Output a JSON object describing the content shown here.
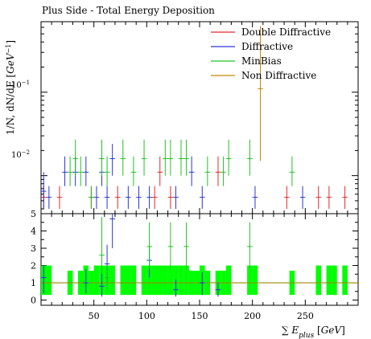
{
  "chart_data": [
    {
      "type": "scatter",
      "title": "Plus Side - Total Energy Deposition",
      "ylabel": "1/N, dN/dE [GeV^-1]",
      "yscale": "log",
      "ylim": [
        0.0035,
        0.7
      ],
      "xlim": [
        0,
        300
      ],
      "ytick_labels": [
        "10^-2",
        "10^-1"
      ],
      "legend": {
        "position": "top-right",
        "entries": [
          {
            "name": "Double Diffractive",
            "color": "#e8262a"
          },
          {
            "name": "Diffractive",
            "color": "#2a35d6"
          },
          {
            "name": "MinBias",
            "color": "#22c322"
          },
          {
            "name": "Non Diffractive",
            "color": "#c8870a"
          }
        ]
      },
      "bin_width": 5,
      "series": [
        {
          "name": "Double Diffractive",
          "color": "#e8262a",
          "points": [
            {
              "x": 2.5,
              "y": 0.0055,
              "lo": 0.004,
              "hi": 0.0075
            },
            {
              "x": 17.5,
              "y": 0.0055,
              "lo": 0.004,
              "hi": 0.0075
            },
            {
              "x": 47.5,
              "y": 0.0055,
              "lo": 0.004,
              "hi": 0.0075
            },
            {
              "x": 72.5,
              "y": 0.0055,
              "lo": 0.004,
              "hi": 0.0075
            },
            {
              "x": 107.5,
              "y": 0.0055,
              "lo": 0.004,
              "hi": 0.0075
            },
            {
              "x": 112.5,
              "y": 0.011,
              "lo": 0.0075,
              "hi": 0.017
            },
            {
              "x": 122.5,
              "y": 0.0055,
              "lo": 0.004,
              "hi": 0.0075
            },
            {
              "x": 167.5,
              "y": 0.011,
              "lo": 0.0075,
              "hi": 0.017
            },
            {
              "x": 232.5,
              "y": 0.0055,
              "lo": 0.004,
              "hi": 0.0075
            },
            {
              "x": 262.5,
              "y": 0.0055,
              "lo": 0.004,
              "hi": 0.0075
            },
            {
              "x": 272.5,
              "y": 0.0055,
              "lo": 0.004,
              "hi": 0.0075
            },
            {
              "x": 287.5,
              "y": 0.0055,
              "lo": 0.004,
              "hi": 0.0075
            }
          ]
        },
        {
          "name": "Diffractive",
          "color": "#2a35d6",
          "points": [
            {
              "x": 2.5,
              "y": 0.0065,
              "lo": 0.004,
              "hi": 0.011
            },
            {
              "x": 7.5,
              "y": 0.0055,
              "lo": 0.004,
              "hi": 0.0075
            },
            {
              "x": 22.5,
              "y": 0.011,
              "lo": 0.0075,
              "hi": 0.017
            },
            {
              "x": 32.5,
              "y": 0.011,
              "lo": 0.0075,
              "hi": 0.017
            },
            {
              "x": 42.5,
              "y": 0.011,
              "lo": 0.0075,
              "hi": 0.017
            },
            {
              "x": 52.5,
              "y": 0.0055,
              "lo": 0.004,
              "hi": 0.0075
            },
            {
              "x": 57.5,
              "y": 0.011,
              "lo": 0.0075,
              "hi": 0.017
            },
            {
              "x": 62.5,
              "y": 0.0055,
              "lo": 0.004,
              "hi": 0.0075
            },
            {
              "x": 67.5,
              "y": 0.016,
              "lo": 0.01,
              "hi": 0.024
            },
            {
              "x": 82.5,
              "y": 0.0055,
              "lo": 0.004,
              "hi": 0.0075
            },
            {
              "x": 92.5,
              "y": 0.0055,
              "lo": 0.004,
              "hi": 0.0075
            },
            {
              "x": 102.5,
              "y": 0.0055,
              "lo": 0.004,
              "hi": 0.0075
            },
            {
              "x": 127.5,
              "y": 0.0055,
              "lo": 0.004,
              "hi": 0.0075
            },
            {
              "x": 142.5,
              "y": 0.011,
              "lo": 0.0075,
              "hi": 0.017
            },
            {
              "x": 152.5,
              "y": 0.0055,
              "lo": 0.004,
              "hi": 0.0075
            },
            {
              "x": 202.5,
              "y": 0.0055,
              "lo": 0.004,
              "hi": 0.0075
            },
            {
              "x": 247.5,
              "y": 0.0055,
              "lo": 0.004,
              "hi": 0.0075
            }
          ]
        },
        {
          "name": "MinBias",
          "color": "#22c322",
          "points": [
            {
              "x": 27.5,
              "y": 0.011,
              "lo": 0.0075,
              "hi": 0.017
            },
            {
              "x": 32.5,
              "y": 0.016,
              "lo": 0.01,
              "hi": 0.027
            },
            {
              "x": 37.5,
              "y": 0.011,
              "lo": 0.0075,
              "hi": 0.017
            },
            {
              "x": 47.5,
              "y": 0.0055,
              "lo": 0.004,
              "hi": 0.0075
            },
            {
              "x": 57.5,
              "y": 0.016,
              "lo": 0.01,
              "hi": 0.027
            },
            {
              "x": 62.5,
              "y": 0.011,
              "lo": 0.0075,
              "hi": 0.017
            },
            {
              "x": 77.5,
              "y": 0.016,
              "lo": 0.01,
              "hi": 0.027
            },
            {
              "x": 87.5,
              "y": 0.011,
              "lo": 0.0075,
              "hi": 0.017
            },
            {
              "x": 97.5,
              "y": 0.016,
              "lo": 0.01,
              "hi": 0.027
            },
            {
              "x": 117.5,
              "y": 0.016,
              "lo": 0.01,
              "hi": 0.027
            },
            {
              "x": 122.5,
              "y": 0.016,
              "lo": 0.01,
              "hi": 0.027
            },
            {
              "x": 132.5,
              "y": 0.016,
              "lo": 0.01,
              "hi": 0.027
            },
            {
              "x": 137.5,
              "y": 0.016,
              "lo": 0.01,
              "hi": 0.027
            },
            {
              "x": 157.5,
              "y": 0.011,
              "lo": 0.0075,
              "hi": 0.017
            },
            {
              "x": 172.5,
              "y": 0.011,
              "lo": 0.0075,
              "hi": 0.017
            },
            {
              "x": 177.5,
              "y": 0.016,
              "lo": 0.01,
              "hi": 0.027
            },
            {
              "x": 197.5,
              "y": 0.016,
              "lo": 0.01,
              "hi": 0.027
            },
            {
              "x": 237.5,
              "y": 0.011,
              "lo": 0.0075,
              "hi": 0.017
            }
          ]
        },
        {
          "name": "Non Diffractive",
          "color": "#c8870a",
          "points": [
            {
              "x": 207.5,
              "y": 0.11,
              "lo": 0.015,
              "hi": 0.62
            }
          ]
        }
      ]
    },
    {
      "type": "scatter",
      "title": "",
      "xlabel": "∑ E_plus [GeV]",
      "ylabel": "",
      "xlim": [
        0,
        300
      ],
      "ylim": [
        -0.3,
        5
      ],
      "xticks": [
        50,
        100,
        150,
        200,
        250
      ],
      "yticks": [
        0,
        1,
        2,
        3,
        4,
        5
      ],
      "reference_line": {
        "y": 1,
        "color": "#9a8a00"
      },
      "band_color": "#00ff00",
      "bands": [
        {
          "x": 2.5,
          "lo": 0.3,
          "hi": 2.0
        },
        {
          "x": 7.5,
          "lo": 0.3,
          "hi": 2.0
        },
        {
          "x": 27.5,
          "lo": 0.3,
          "hi": 1.7
        },
        {
          "x": 37.5,
          "lo": 0.3,
          "hi": 1.7
        },
        {
          "x": 42.5,
          "lo": 0.3,
          "hi": 2.0
        },
        {
          "x": 47.5,
          "lo": 0.3,
          "hi": 1.7
        },
        {
          "x": 52.5,
          "lo": 0.3,
          "hi": 2.0
        },
        {
          "x": 57.5,
          "lo": 0.3,
          "hi": 2.0
        },
        {
          "x": 62.5,
          "lo": 0.3,
          "hi": 2.0
        },
        {
          "x": 67.5,
          "lo": 0.3,
          "hi": 2.0
        },
        {
          "x": 77.5,
          "lo": 0.3,
          "hi": 2.0
        },
        {
          "x": 82.5,
          "lo": 0.3,
          "hi": 2.0
        },
        {
          "x": 87.5,
          "lo": 0.3,
          "hi": 2.0
        },
        {
          "x": 97.5,
          "lo": 0.3,
          "hi": 2.0
        },
        {
          "x": 102.5,
          "lo": 0.3,
          "hi": 2.0
        },
        {
          "x": 107.5,
          "lo": 0.3,
          "hi": 2.0
        },
        {
          "x": 112.5,
          "lo": 0.3,
          "hi": 2.0
        },
        {
          "x": 117.5,
          "lo": 0.3,
          "hi": 2.0
        },
        {
          "x": 122.5,
          "lo": 0.3,
          "hi": 2.0
        },
        {
          "x": 127.5,
          "lo": 0.3,
          "hi": 2.0
        },
        {
          "x": 132.5,
          "lo": 0.3,
          "hi": 2.0
        },
        {
          "x": 137.5,
          "lo": 0.3,
          "hi": 2.0
        },
        {
          "x": 142.5,
          "lo": 0.3,
          "hi": 1.7
        },
        {
          "x": 147.5,
          "lo": 0.3,
          "hi": 1.7
        },
        {
          "x": 152.5,
          "lo": 0.3,
          "hi": 2.0
        },
        {
          "x": 157.5,
          "lo": 0.3,
          "hi": 1.7
        },
        {
          "x": 167.5,
          "lo": 0.3,
          "hi": 1.7
        },
        {
          "x": 172.5,
          "lo": 0.3,
          "hi": 1.7
        },
        {
          "x": 177.5,
          "lo": 0.3,
          "hi": 2.0
        },
        {
          "x": 197.5,
          "lo": 0.3,
          "hi": 2.0
        },
        {
          "x": 202.5,
          "lo": 0.3,
          "hi": 2.0
        },
        {
          "x": 237.5,
          "lo": 0.3,
          "hi": 1.7
        },
        {
          "x": 262.5,
          "lo": 0.3,
          "hi": 2.0
        },
        {
          "x": 272.5,
          "lo": 0.3,
          "hi": 2.0
        },
        {
          "x": 277.5,
          "lo": 0.3,
          "hi": 2.0
        },
        {
          "x": 287.5,
          "lo": 0.3,
          "hi": 2.0
        }
      ],
      "series": [
        {
          "name": "Diffractive",
          "color": "#2a35d6",
          "points": [
            {
              "x": 2.5,
              "y": 1.3,
              "lo": 0.4,
              "hi": 2.0
            },
            {
              "x": 42.5,
              "y": 1.0,
              "lo": 0.4,
              "hi": 1.8
            },
            {
              "x": 57.5,
              "y": 0.8,
              "lo": 0.2,
              "hi": 1.6
            },
            {
              "x": 62.5,
              "y": 2.1,
              "lo": 1.0,
              "hi": 3.2
            },
            {
              "x": 67.5,
              "y": 4.7,
              "lo": 3.0,
              "hi": 5.0
            },
            {
              "x": 102.5,
              "y": 2.3,
              "lo": 1.3,
              "hi": 3.1
            },
            {
              "x": 127.5,
              "y": 0.6,
              "lo": 0.2,
              "hi": 1.2
            },
            {
              "x": 152.5,
              "y": 1.0,
              "lo": 0.3,
              "hi": 1.6
            },
            {
              "x": 167.5,
              "y": 0.6,
              "lo": 0.2,
              "hi": 1.0
            }
          ]
        },
        {
          "name": "MinBias",
          "color": "#22c322",
          "points": [
            {
              "x": 57.5,
              "y": 2.6,
              "lo": 1.5,
              "hi": 4.8
            },
            {
              "x": 62.5,
              "y": 1.3,
              "lo": 0.6,
              "hi": 2.0
            },
            {
              "x": 102.5,
              "y": 3.1,
              "lo": 1.8,
              "hi": 4.5
            },
            {
              "x": 122.5,
              "y": 3.1,
              "lo": 1.8,
              "hi": 4.5
            },
            {
              "x": 137.5,
              "y": 3.1,
              "lo": 1.8,
              "hi": 4.5
            },
            {
              "x": 197.5,
              "y": 3.1,
              "lo": 1.8,
              "hi": 4.5
            }
          ]
        }
      ]
    }
  ]
}
